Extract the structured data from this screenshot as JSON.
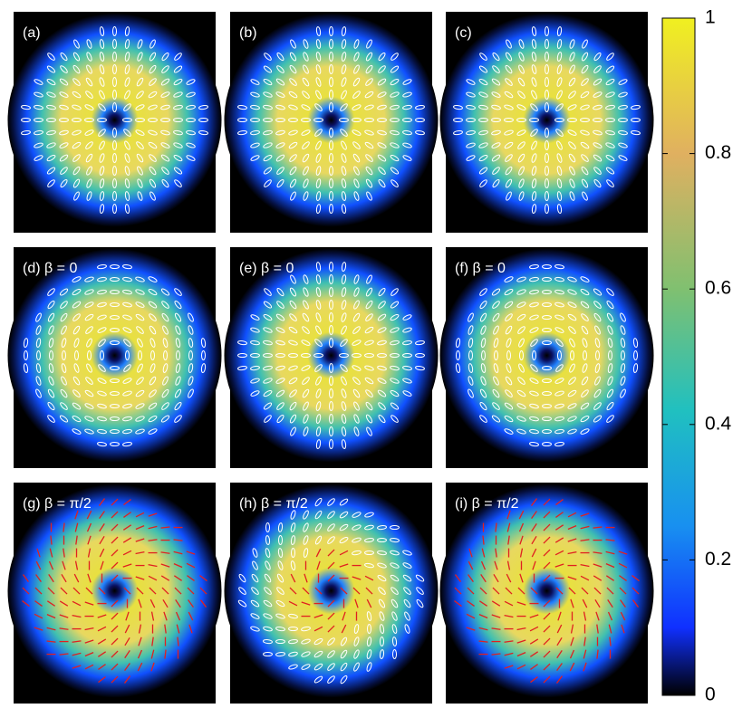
{
  "panels": [
    {
      "label": "(a)"
    },
    {
      "label": "(b)"
    },
    {
      "label": "(c)"
    },
    {
      "label": "(d) β = 0"
    },
    {
      "label": "(e) β = 0"
    },
    {
      "label": "(f) β = 0"
    },
    {
      "label": "(g) β = π/2"
    },
    {
      "label": "(h) β = π/2"
    },
    {
      "label": "(i) β = π/2"
    }
  ],
  "colorbar": {
    "lim": [
      0,
      1
    ],
    "ticks": [
      0,
      0.2,
      0.4,
      0.6,
      0.8,
      1
    ]
  }
}
